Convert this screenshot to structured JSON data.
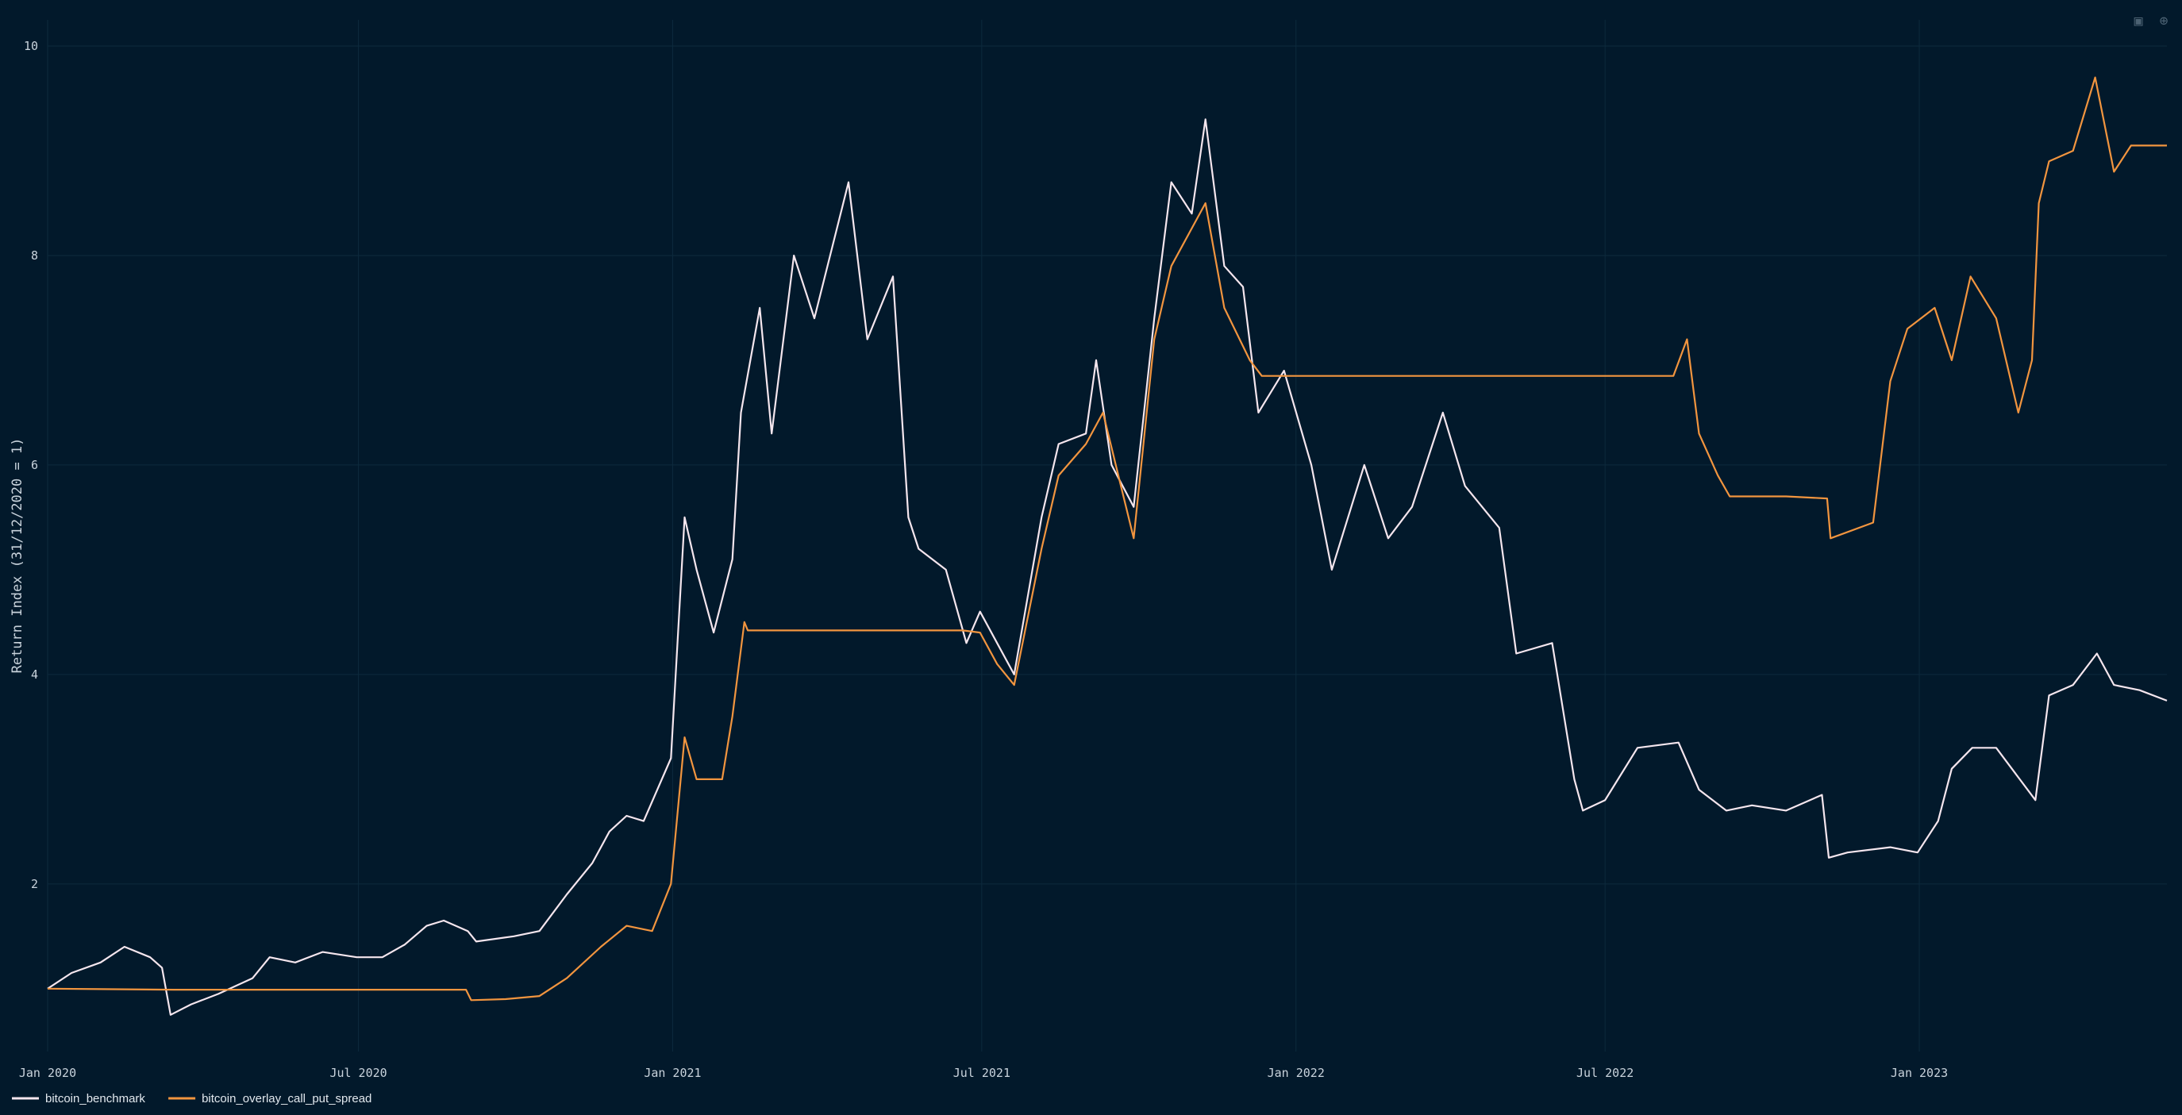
{
  "modebar": {
    "camera_icon": "camera-icon",
    "zoom_icon": "zoom-in-icon"
  },
  "colors": {
    "background": "#02192b",
    "grid": "#0d2a3d",
    "benchmark": "#f5e6ee",
    "overlay": "#f2953f"
  },
  "chart_data": {
    "type": "line",
    "title": "",
    "xlabel": "",
    "ylabel": "Return Index (31/12/2020 = 1)",
    "xlim": [
      "2020-01-01",
      "2023-05-26"
    ],
    "ylim": [
      0.4,
      10.25
    ],
    "x_ticks": [
      {
        "date": "2020-01-01",
        "label": "Jan 2020"
      },
      {
        "date": "2020-07-01",
        "label": "Jul 2020"
      },
      {
        "date": "2021-01-01",
        "label": "Jan 2021"
      },
      {
        "date": "2021-07-01",
        "label": "Jul 2021"
      },
      {
        "date": "2022-01-01",
        "label": "Jan 2022"
      },
      {
        "date": "2022-07-01",
        "label": "Jul 2022"
      },
      {
        "date": "2023-01-01",
        "label": "Jan 2023"
      }
    ],
    "y_ticks": [
      2,
      4,
      6,
      8,
      10
    ],
    "grid": true,
    "legend_position": "bottom-left",
    "series": [
      {
        "name": "bitcoin_benchmark",
        "color": "#f5e6ee",
        "points": [
          [
            "2020-01-01",
            1.0
          ],
          [
            "2020-01-15",
            1.15
          ],
          [
            "2020-02-01",
            1.25
          ],
          [
            "2020-02-15",
            1.4
          ],
          [
            "2020-03-01",
            1.3
          ],
          [
            "2020-03-08",
            1.2
          ],
          [
            "2020-03-13",
            0.75
          ],
          [
            "2020-03-25",
            0.85
          ],
          [
            "2020-04-10",
            0.95
          ],
          [
            "2020-04-30",
            1.1
          ],
          [
            "2020-05-10",
            1.3
          ],
          [
            "2020-05-25",
            1.25
          ],
          [
            "2020-06-10",
            1.35
          ],
          [
            "2020-06-30",
            1.3
          ],
          [
            "2020-07-15",
            1.3
          ],
          [
            "2020-07-28",
            1.42
          ],
          [
            "2020-08-10",
            1.6
          ],
          [
            "2020-08-20",
            1.65
          ],
          [
            "2020-09-03",
            1.55
          ],
          [
            "2020-09-08",
            1.45
          ],
          [
            "2020-09-30",
            1.5
          ],
          [
            "2020-10-15",
            1.55
          ],
          [
            "2020-10-31",
            1.9
          ],
          [
            "2020-11-15",
            2.2
          ],
          [
            "2020-11-25",
            2.5
          ],
          [
            "2020-12-05",
            2.65
          ],
          [
            "2020-12-15",
            2.6
          ],
          [
            "2020-12-31",
            3.2
          ],
          [
            "2021-01-08",
            5.5
          ],
          [
            "2021-01-15",
            5.0
          ],
          [
            "2021-01-25",
            4.4
          ],
          [
            "2021-02-05",
            5.1
          ],
          [
            "2021-02-10",
            6.5
          ],
          [
            "2021-02-21",
            7.5
          ],
          [
            "2021-02-28",
            6.3
          ],
          [
            "2021-03-13",
            8.0
          ],
          [
            "2021-03-25",
            7.4
          ],
          [
            "2021-04-14",
            8.7
          ],
          [
            "2021-04-25",
            7.2
          ],
          [
            "2021-05-10",
            7.8
          ],
          [
            "2021-05-19",
            5.5
          ],
          [
            "2021-05-25",
            5.2
          ],
          [
            "2021-06-10",
            5.0
          ],
          [
            "2021-06-22",
            4.3
          ],
          [
            "2021-06-30",
            4.6
          ],
          [
            "2021-07-10",
            4.3
          ],
          [
            "2021-07-20",
            4.0
          ],
          [
            "2021-08-05",
            5.5
          ],
          [
            "2021-08-15",
            6.2
          ],
          [
            "2021-08-31",
            6.3
          ],
          [
            "2021-09-06",
            7.0
          ],
          [
            "2021-09-15",
            6.0
          ],
          [
            "2021-09-28",
            5.6
          ],
          [
            "2021-10-10",
            7.4
          ],
          [
            "2021-10-20",
            8.7
          ],
          [
            "2021-11-01",
            8.4
          ],
          [
            "2021-11-09",
            9.3
          ],
          [
            "2021-11-20",
            7.9
          ],
          [
            "2021-12-01",
            7.7
          ],
          [
            "2021-12-10",
            6.5
          ],
          [
            "2021-12-25",
            6.9
          ],
          [
            "2022-01-10",
            6.0
          ],
          [
            "2022-01-22",
            5.0
          ],
          [
            "2022-02-10",
            6.0
          ],
          [
            "2022-02-24",
            5.3
          ],
          [
            "2022-03-10",
            5.6
          ],
          [
            "2022-03-28",
            6.5
          ],
          [
            "2022-04-10",
            5.8
          ],
          [
            "2022-04-30",
            5.4
          ],
          [
            "2022-05-10",
            4.2
          ],
          [
            "2022-05-31",
            4.3
          ],
          [
            "2022-06-13",
            3.0
          ],
          [
            "2022-06-18",
            2.7
          ],
          [
            "2022-07-01",
            2.8
          ],
          [
            "2022-07-20",
            3.3
          ],
          [
            "2022-08-13",
            3.35
          ],
          [
            "2022-08-25",
            2.9
          ],
          [
            "2022-09-10",
            2.7
          ],
          [
            "2022-09-25",
            2.75
          ],
          [
            "2022-10-15",
            2.7
          ],
          [
            "2022-11-05",
            2.85
          ],
          [
            "2022-11-09",
            2.25
          ],
          [
            "2022-11-20",
            2.3
          ],
          [
            "2022-12-15",
            2.35
          ],
          [
            "2022-12-31",
            2.3
          ],
          [
            "2023-01-12",
            2.6
          ],
          [
            "2023-01-20",
            3.1
          ],
          [
            "2023-02-01",
            3.3
          ],
          [
            "2023-02-15",
            3.3
          ],
          [
            "2023-03-10",
            2.8
          ],
          [
            "2023-03-18",
            3.8
          ],
          [
            "2023-04-01",
            3.9
          ],
          [
            "2023-04-15",
            4.2
          ],
          [
            "2023-04-25",
            3.9
          ],
          [
            "2023-05-10",
            3.85
          ],
          [
            "2023-05-26",
            3.75
          ]
        ]
      },
      {
        "name": "bitcoin_overlay_call_put_spread",
        "color": "#f2953f",
        "points": [
          [
            "2020-01-01",
            1.0
          ],
          [
            "2020-03-15",
            0.99
          ],
          [
            "2020-06-01",
            0.99
          ],
          [
            "2020-09-02",
            0.99
          ],
          [
            "2020-09-05",
            0.89
          ],
          [
            "2020-09-25",
            0.9
          ],
          [
            "2020-10-15",
            0.93
          ],
          [
            "2020-10-31",
            1.1
          ],
          [
            "2020-11-20",
            1.4
          ],
          [
            "2020-12-05",
            1.6
          ],
          [
            "2020-12-20",
            1.55
          ],
          [
            "2020-12-31",
            2.0
          ],
          [
            "2021-01-08",
            3.4
          ],
          [
            "2021-01-15",
            3.0
          ],
          [
            "2021-01-30",
            3.0
          ],
          [
            "2021-02-05",
            3.6
          ],
          [
            "2021-02-12",
            4.5
          ],
          [
            "2021-02-14",
            4.42
          ],
          [
            "2021-04-15",
            4.42
          ],
          [
            "2021-06-20",
            4.42
          ],
          [
            "2021-06-30",
            4.4
          ],
          [
            "2021-07-10",
            4.1
          ],
          [
            "2021-07-20",
            3.9
          ],
          [
            "2021-08-05",
            5.2
          ],
          [
            "2021-08-15",
            5.9
          ],
          [
            "2021-08-31",
            6.2
          ],
          [
            "2021-09-10",
            6.5
          ],
          [
            "2021-09-28",
            5.3
          ],
          [
            "2021-10-10",
            7.2
          ],
          [
            "2021-10-20",
            7.9
          ],
          [
            "2021-11-09",
            8.5
          ],
          [
            "2021-11-20",
            7.5
          ],
          [
            "2021-12-05",
            7.0
          ],
          [
            "2021-12-12",
            6.85
          ],
          [
            "2022-02-01",
            6.85
          ],
          [
            "2022-05-01",
            6.85
          ],
          [
            "2022-08-10",
            6.85
          ],
          [
            "2022-08-18",
            7.2
          ],
          [
            "2022-08-25",
            6.3
          ],
          [
            "2022-09-05",
            5.9
          ],
          [
            "2022-09-12",
            5.7
          ],
          [
            "2022-10-15",
            5.7
          ],
          [
            "2022-11-08",
            5.68
          ],
          [
            "2022-11-10",
            5.3
          ],
          [
            "2022-12-05",
            5.45
          ],
          [
            "2022-12-15",
            6.8
          ],
          [
            "2022-12-25",
            7.3
          ],
          [
            "2023-01-10",
            7.5
          ],
          [
            "2023-01-20",
            7.0
          ],
          [
            "2023-01-31",
            7.8
          ],
          [
            "2023-02-15",
            7.4
          ],
          [
            "2023-02-28",
            6.5
          ],
          [
            "2023-03-08",
            7.0
          ],
          [
            "2023-03-12",
            8.5
          ],
          [
            "2023-03-18",
            8.9
          ],
          [
            "2023-04-01",
            9.0
          ],
          [
            "2023-04-14",
            9.7
          ],
          [
            "2023-04-25",
            8.8
          ],
          [
            "2023-05-05",
            9.05
          ],
          [
            "2023-05-26",
            9.05
          ]
        ]
      }
    ]
  }
}
